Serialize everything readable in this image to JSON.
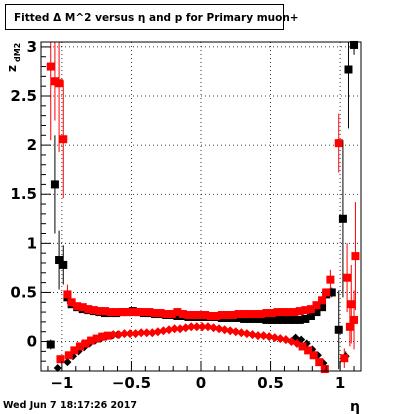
{
  "title": "Fitted Δ M^2 versus η and p for Primary muon+",
  "timestamp": "Wed Jun  7 18:17:26 2017",
  "chart_data": {
    "type": "scatter",
    "title": "Fitted Δ M^2 versus η and p for Primary muon+",
    "xlabel": "η",
    "ylabel": "z",
    "ylabel_subscript": "dM2",
    "xlim": [
      -1.15,
      1.15
    ],
    "ylim": [
      -0.3,
      3.05
    ],
    "grid": true,
    "x_ticks": [
      -1,
      -0.5,
      0,
      0.5,
      1
    ],
    "x_tick_labels": [
      "−1",
      "−0.5",
      "0",
      "0.5",
      "1"
    ],
    "y_ticks": [
      0,
      0.5,
      1,
      1.5,
      2,
      2.5,
      3
    ],
    "y_tick_labels": [
      "0",
      "0.5",
      "1",
      "1.5",
      "2",
      "2.5",
      "3"
    ],
    "series": [
      {
        "color": "#000000",
        "marker": "square",
        "points": [
          {
            "x": -1.08,
            "y": -0.03,
            "err": 0.05
          },
          {
            "x": -1.05,
            "y": 1.6,
            "err": 0.5
          },
          {
            "x": -1.02,
            "y": 0.83,
            "err": 0.3
          },
          {
            "x": -0.99,
            "y": 0.78,
            "err": 0.2
          },
          {
            "x": -0.96,
            "y": 0.45,
            "err": 0.05
          },
          {
            "x": -0.93,
            "y": 0.38
          },
          {
            "x": -0.89,
            "y": 0.35
          },
          {
            "x": -0.85,
            "y": 0.33
          },
          {
            "x": -0.81,
            "y": 0.32
          },
          {
            "x": -0.77,
            "y": 0.31
          },
          {
            "x": -0.73,
            "y": 0.3
          },
          {
            "x": -0.69,
            "y": 0.29
          },
          {
            "x": -0.65,
            "y": 0.29
          },
          {
            "x": -0.61,
            "y": 0.29
          },
          {
            "x": -0.57,
            "y": 0.3
          },
          {
            "x": -0.53,
            "y": 0.3
          },
          {
            "x": -0.49,
            "y": 0.31
          },
          {
            "x": -0.45,
            "y": 0.3
          },
          {
            "x": -0.41,
            "y": 0.29
          },
          {
            "x": -0.37,
            "y": 0.29
          },
          {
            "x": -0.33,
            "y": 0.28
          },
          {
            "x": -0.29,
            "y": 0.28
          },
          {
            "x": -0.25,
            "y": 0.27
          },
          {
            "x": -0.21,
            "y": 0.27
          },
          {
            "x": -0.17,
            "y": 0.26
          },
          {
            "x": -0.13,
            "y": 0.26
          },
          {
            "x": -0.09,
            "y": 0.25
          },
          {
            "x": -0.05,
            "y": 0.25
          },
          {
            "x": -0.01,
            "y": 0.25
          },
          {
            "x": 0.03,
            "y": 0.25
          },
          {
            "x": 0.07,
            "y": 0.25
          },
          {
            "x": 0.11,
            "y": 0.25
          },
          {
            "x": 0.15,
            "y": 0.24
          },
          {
            "x": 0.19,
            "y": 0.24
          },
          {
            "x": 0.23,
            "y": 0.24
          },
          {
            "x": 0.27,
            "y": 0.24
          },
          {
            "x": 0.31,
            "y": 0.23
          },
          {
            "x": 0.35,
            "y": 0.23
          },
          {
            "x": 0.39,
            "y": 0.23
          },
          {
            "x": 0.43,
            "y": 0.23
          },
          {
            "x": 0.47,
            "y": 0.22
          },
          {
            "x": 0.51,
            "y": 0.22
          },
          {
            "x": 0.55,
            "y": 0.22
          },
          {
            "x": 0.59,
            "y": 0.22
          },
          {
            "x": 0.63,
            "y": 0.22
          },
          {
            "x": 0.67,
            "y": 0.22
          },
          {
            "x": 0.71,
            "y": 0.22
          },
          {
            "x": 0.75,
            "y": 0.23
          },
          {
            "x": 0.79,
            "y": 0.26
          },
          {
            "x": 0.83,
            "y": 0.3
          },
          {
            "x": 0.87,
            "y": 0.35
          },
          {
            "x": 0.9,
            "y": 0.48
          },
          {
            "x": 0.94,
            "y": 0.5,
            "err": 0.05
          },
          {
            "x": 0.99,
            "y": 0.12,
            "err": 0.4
          },
          {
            "x": 1.02,
            "y": 1.25,
            "err": 0.8
          },
          {
            "x": 1.06,
            "y": 2.77,
            "err": 0.6
          },
          {
            "x": 1.1,
            "y": 3.02,
            "err": 0.1
          },
          {
            "x": -1.03,
            "y": -0.27
          },
          {
            "x": -0.96,
            "y": -0.21
          },
          {
            "x": -0.92,
            "y": -0.15
          },
          {
            "x": -0.88,
            "y": -0.1
          },
          {
            "x": -0.84,
            "y": -0.06
          },
          {
            "x": -0.8,
            "y": -0.02
          },
          {
            "x": -0.76,
            "y": 0.01
          },
          {
            "x": -0.72,
            "y": 0.03
          },
          {
            "x": -0.68,
            "y": 0.05
          },
          {
            "x": -0.64,
            "y": 0.06
          },
          {
            "x": -0.6,
            "y": 0.07
          },
          {
            "x": 0.68,
            "y": 0.04
          },
          {
            "x": 0.72,
            "y": 0.02
          },
          {
            "x": 0.76,
            "y": -0.02
          },
          {
            "x": 0.8,
            "y": -0.08
          },
          {
            "x": 0.84,
            "y": -0.14
          },
          {
            "x": 0.88,
            "y": -0.22
          },
          {
            "x": 1.04,
            "y": -0.15,
            "err": 0.05
          }
        ]
      },
      {
        "color": "#ff0000",
        "marker": "square",
        "points": [
          {
            "x": -1.08,
            "y": 2.8,
            "err": 0.75
          },
          {
            "x": -1.05,
            "y": 2.65,
            "err": 0.4
          },
          {
            "x": -1.02,
            "y": 2.63,
            "err": 0.7
          },
          {
            "x": -0.99,
            "y": 2.06,
            "err": 0.6
          },
          {
            "x": -0.96,
            "y": 0.48,
            "err": 0.1
          },
          {
            "x": -0.93,
            "y": 0.4
          },
          {
            "x": -0.89,
            "y": 0.36
          },
          {
            "x": -0.85,
            "y": 0.35
          },
          {
            "x": -0.81,
            "y": 0.33
          },
          {
            "x": -0.77,
            "y": 0.32
          },
          {
            "x": -0.73,
            "y": 0.31
          },
          {
            "x": -0.69,
            "y": 0.31
          },
          {
            "x": -0.65,
            "y": 0.3
          },
          {
            "x": -0.61,
            "y": 0.3
          },
          {
            "x": -0.57,
            "y": 0.3
          },
          {
            "x": -0.53,
            "y": 0.3
          },
          {
            "x": -0.49,
            "y": 0.3
          },
          {
            "x": -0.45,
            "y": 0.3
          },
          {
            "x": -0.41,
            "y": 0.3
          },
          {
            "x": -0.37,
            "y": 0.3
          },
          {
            "x": -0.33,
            "y": 0.29
          },
          {
            "x": -0.29,
            "y": 0.29
          },
          {
            "x": -0.25,
            "y": 0.28
          },
          {
            "x": -0.21,
            "y": 0.28
          },
          {
            "x": -0.17,
            "y": 0.3
          },
          {
            "x": -0.13,
            "y": 0.28
          },
          {
            "x": -0.09,
            "y": 0.27
          },
          {
            "x": -0.05,
            "y": 0.27
          },
          {
            "x": -0.01,
            "y": 0.27
          },
          {
            "x": 0.03,
            "y": 0.27
          },
          {
            "x": 0.07,
            "y": 0.26
          },
          {
            "x": 0.11,
            "y": 0.26
          },
          {
            "x": 0.15,
            "y": 0.27
          },
          {
            "x": 0.19,
            "y": 0.27
          },
          {
            "x": 0.23,
            "y": 0.27
          },
          {
            "x": 0.27,
            "y": 0.28
          },
          {
            "x": 0.31,
            "y": 0.28
          },
          {
            "x": 0.35,
            "y": 0.28
          },
          {
            "x": 0.39,
            "y": 0.28
          },
          {
            "x": 0.43,
            "y": 0.28
          },
          {
            "x": 0.47,
            "y": 0.29
          },
          {
            "x": 0.51,
            "y": 0.29
          },
          {
            "x": 0.55,
            "y": 0.3
          },
          {
            "x": 0.59,
            "y": 0.3
          },
          {
            "x": 0.63,
            "y": 0.3
          },
          {
            "x": 0.67,
            "y": 0.3
          },
          {
            "x": 0.71,
            "y": 0.31
          },
          {
            "x": 0.75,
            "y": 0.32
          },
          {
            "x": 0.79,
            "y": 0.33
          },
          {
            "x": 0.83,
            "y": 0.37
          },
          {
            "x": 0.87,
            "y": 0.42
          },
          {
            "x": 0.9,
            "y": 0.5
          },
          {
            "x": 0.93,
            "y": 0.63,
            "err": 0.1
          },
          {
            "x": 0.99,
            "y": 2.02,
            "err": 0.3
          },
          {
            "x": 1.05,
            "y": 0.65,
            "err": 0.35
          },
          {
            "x": 1.08,
            "y": 0.38,
            "err": 0.4
          },
          {
            "x": 1.11,
            "y": 0.87,
            "err": 0.55
          },
          {
            "x": -1.01,
            "y": -0.18
          },
          {
            "x": -0.95,
            "y": -0.14
          },
          {
            "x": -0.91,
            "y": -0.09
          },
          {
            "x": -0.87,
            "y": -0.05
          },
          {
            "x": -0.83,
            "y": -0.02
          },
          {
            "x": -0.79,
            "y": 0.01
          },
          {
            "x": -0.75,
            "y": 0.03
          },
          {
            "x": -0.71,
            "y": 0.05
          },
          {
            "x": -0.67,
            "y": 0.06
          },
          {
            "x": -0.63,
            "y": 0.07
          },
          {
            "x": -0.59,
            "y": 0.07
          },
          {
            "x": -0.55,
            "y": 0.08
          },
          {
            "x": -0.51,
            "y": 0.08
          },
          {
            "x": -0.47,
            "y": 0.08
          },
          {
            "x": -0.43,
            "y": 0.09
          },
          {
            "x": -0.39,
            "y": 0.09
          },
          {
            "x": -0.35,
            "y": 0.09
          },
          {
            "x": -0.31,
            "y": 0.1
          },
          {
            "x": -0.27,
            "y": 0.11
          },
          {
            "x": -0.23,
            "y": 0.12
          },
          {
            "x": -0.19,
            "y": 0.13
          },
          {
            "x": -0.15,
            "y": 0.13
          },
          {
            "x": -0.11,
            "y": 0.14
          },
          {
            "x": -0.07,
            "y": 0.15
          },
          {
            "x": -0.03,
            "y": 0.15
          },
          {
            "x": 0.01,
            "y": 0.15
          },
          {
            "x": 0.05,
            "y": 0.15
          },
          {
            "x": 0.09,
            "y": 0.14
          },
          {
            "x": 0.13,
            "y": 0.13
          },
          {
            "x": 0.17,
            "y": 0.12
          },
          {
            "x": 0.21,
            "y": 0.11
          },
          {
            "x": 0.25,
            "y": 0.1
          },
          {
            "x": 0.29,
            "y": 0.09
          },
          {
            "x": 0.33,
            "y": 0.08
          },
          {
            "x": 0.37,
            "y": 0.07
          },
          {
            "x": 0.41,
            "y": 0.06
          },
          {
            "x": 0.45,
            "y": 0.06
          },
          {
            "x": 0.49,
            "y": 0.05
          },
          {
            "x": 0.53,
            "y": 0.04
          },
          {
            "x": 0.57,
            "y": 0.03
          },
          {
            "x": 0.61,
            "y": 0.02
          },
          {
            "x": 0.65,
            "y": 0.0
          },
          {
            "x": 0.69,
            "y": -0.02
          },
          {
            "x": 0.73,
            "y": -0.05
          },
          {
            "x": 0.77,
            "y": -0.09
          },
          {
            "x": 0.81,
            "y": -0.14
          },
          {
            "x": 0.85,
            "y": -0.21
          },
          {
            "x": 0.89,
            "y": -0.28
          },
          {
            "x": 1.03,
            "y": -0.17,
            "err": 0.1
          },
          {
            "x": 1.07,
            "y": 0.15,
            "err": 0.2
          },
          {
            "x": 1.1,
            "y": 0.22,
            "err": 0.3
          }
        ]
      }
    ]
  }
}
